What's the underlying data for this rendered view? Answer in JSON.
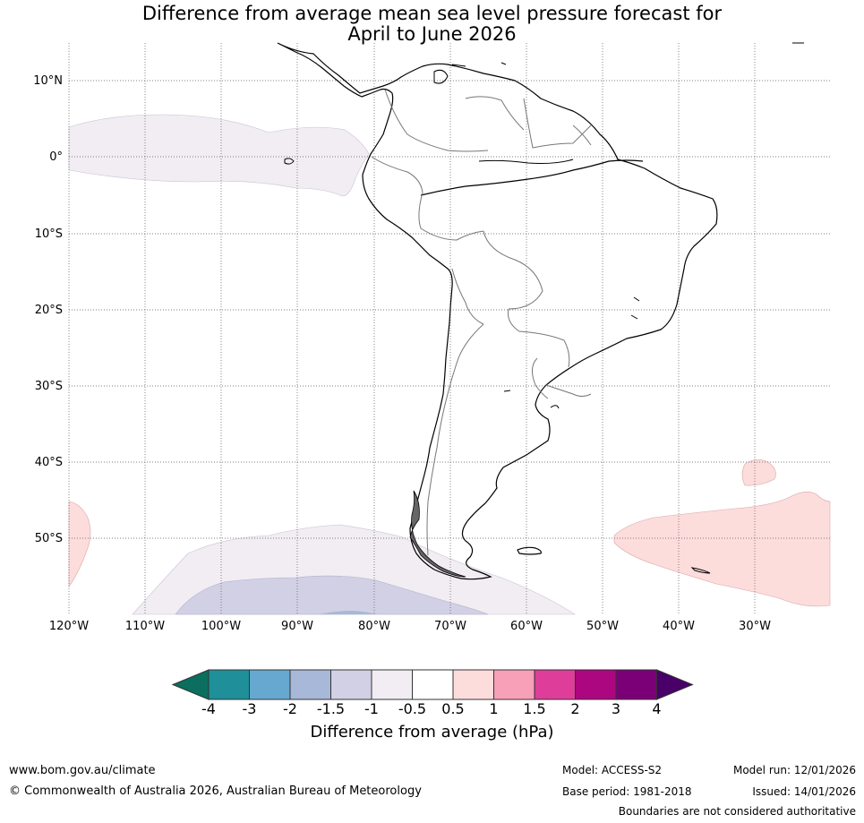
{
  "title_line1": "Difference from average mean sea level pressure forecast for",
  "title_line2": "April to June 2026",
  "lat_labels": [
    "10°N",
    "0°",
    "10°S",
    "20°S",
    "30°S",
    "40°S",
    "50°S"
  ],
  "lon_labels": [
    "120°W",
    "110°W",
    "100°W",
    "90°W",
    "80°W",
    "70°W",
    "60°W",
    "50°W",
    "40°W",
    "30°W"
  ],
  "colorbar": {
    "colors": [
      "#0b6e5e",
      "#1f8f99",
      "#66a8d0",
      "#a7b8d8",
      "#d2d0e4",
      "#f1edf3",
      "#ffffff",
      "#fddcdc",
      "#f7a0b8",
      "#df3d9a",
      "#ac0680",
      "#7b0077",
      "#490068"
    ],
    "labels": [
      "-4",
      "-3",
      "-2",
      "-1.5",
      "-1",
      "-0.5",
      "0.5",
      "1",
      "1.5",
      "2",
      "3",
      "4"
    ],
    "title": "Difference from average (hPa)"
  },
  "footer": {
    "url": "www.bom.gov.au/climate",
    "copyright": "© Commonwealth of Australia 2026, Australian Bureau of Meteorology",
    "model": "Model: ACCESS-S2",
    "base_period": "Base period: 1981-2018",
    "model_run": "Model run: 12/01/2026",
    "issued": "Issued: 14/01/2026",
    "disclaimer": "Boundaries are not considered authoritative"
  }
}
